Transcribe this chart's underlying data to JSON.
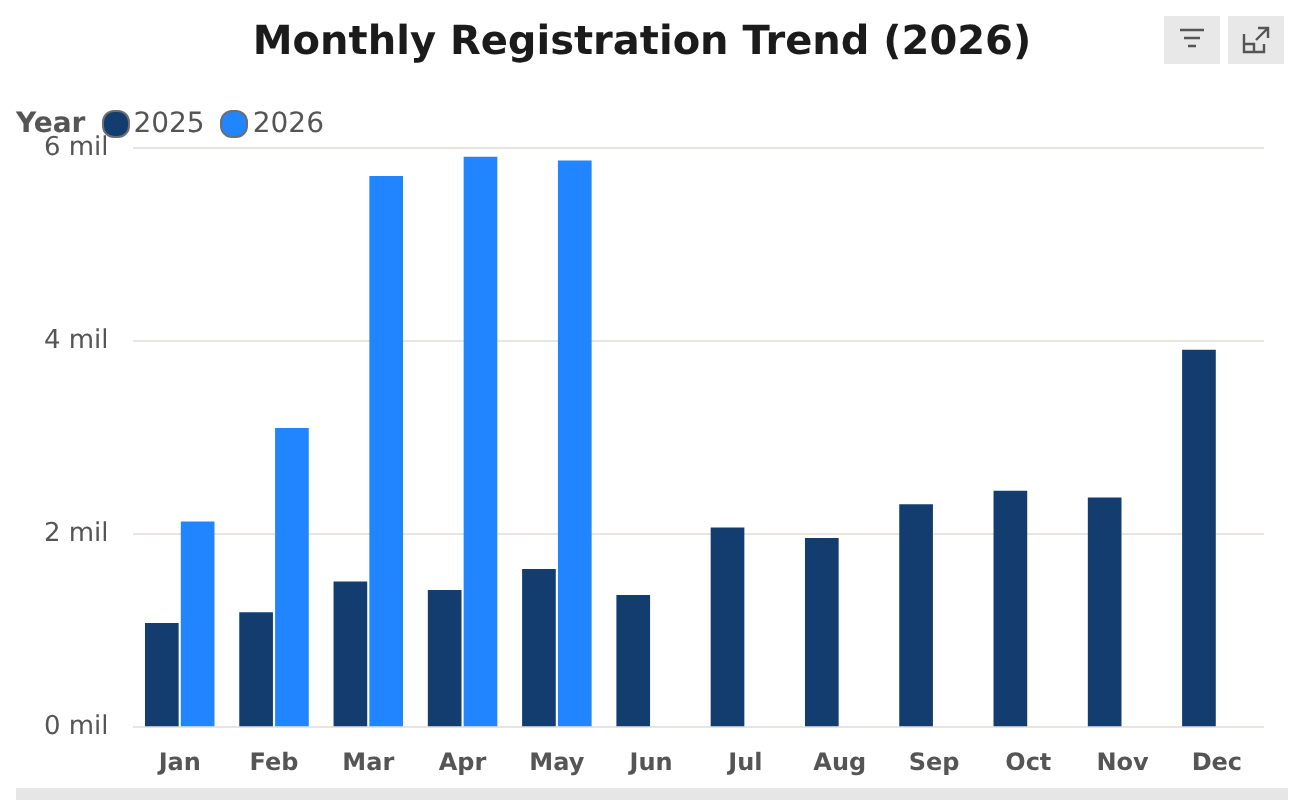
{
  "chart_data": {
    "type": "bar",
    "title": "Monthly Registration Trend (2026)",
    "legend_title": "Year",
    "categories": [
      "Jan",
      "Feb",
      "Mar",
      "Apr",
      "May",
      "Jun",
      "Jul",
      "Aug",
      "Sep",
      "Oct",
      "Nov",
      "Dec"
    ],
    "series": [
      {
        "name": "2025",
        "color": "#123d6e",
        "values": [
          1.08,
          1.19,
          1.51,
          1.42,
          1.64,
          1.37,
          2.07,
          1.96,
          2.31,
          2.45,
          2.38,
          3.91
        ]
      },
      {
        "name": "2026",
        "color": "#2185ff",
        "values": [
          2.13,
          3.1,
          5.71,
          5.91,
          5.87,
          null,
          null,
          null,
          null,
          null,
          null,
          null
        ]
      }
    ],
    "ylim": [
      0,
      6
    ],
    "yticks": [
      {
        "value": 0,
        "label": "0 mil"
      },
      {
        "value": 2,
        "label": "2 mil"
      },
      {
        "value": 4,
        "label": "4 mil"
      },
      {
        "value": 6,
        "label": "6 mil"
      }
    ],
    "grid": "y",
    "legend": "top left"
  }
}
